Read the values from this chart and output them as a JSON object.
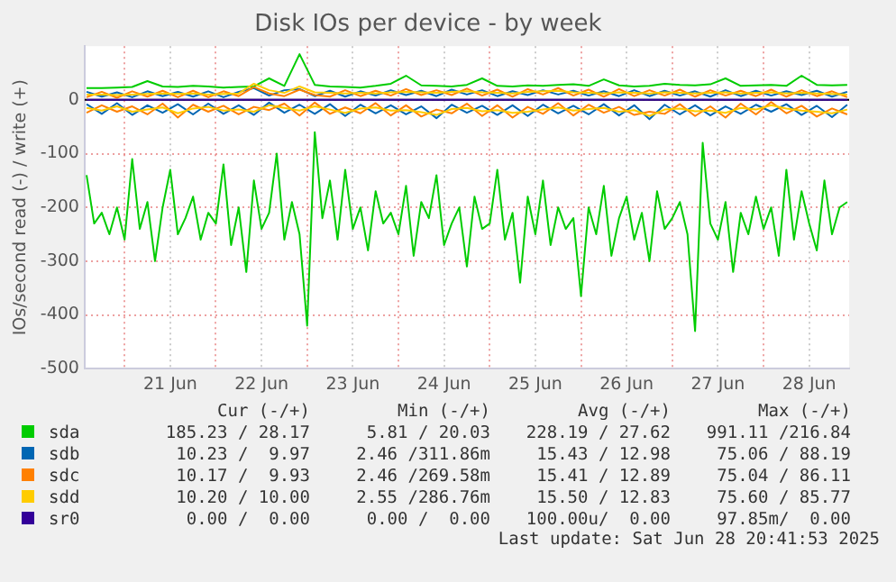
{
  "chart_data": {
    "type": "line",
    "title": "Disk IOs per device - by week",
    "ylabel": "IOs/second read (-) / write (+)",
    "x": [
      "2025-06-20T14:00",
      "2025-06-20T18:00",
      "2025-06-20T22:00",
      "2025-06-21T02:00",
      "2025-06-21T06:00",
      "2025-06-21T10:00",
      "2025-06-21T14:00",
      "2025-06-21T18:00",
      "2025-06-21T22:00",
      "2025-06-22T02:00",
      "2025-06-22T06:00",
      "2025-06-22T10:00",
      "2025-06-22T14:00",
      "2025-06-22T18:00",
      "2025-06-22T22:00",
      "2025-06-23T02:00",
      "2025-06-23T06:00",
      "2025-06-23T10:00",
      "2025-06-23T14:00",
      "2025-06-23T18:00",
      "2025-06-23T22:00",
      "2025-06-24T02:00",
      "2025-06-24T06:00",
      "2025-06-24T10:00",
      "2025-06-24T14:00",
      "2025-06-24T18:00",
      "2025-06-24T22:00",
      "2025-06-25T02:00",
      "2025-06-25T06:00",
      "2025-06-25T10:00",
      "2025-06-25T14:00",
      "2025-06-25T18:00",
      "2025-06-25T22:00",
      "2025-06-26T02:00",
      "2025-06-26T06:00",
      "2025-06-26T10:00",
      "2025-06-26T14:00",
      "2025-06-26T18:00",
      "2025-06-26T22:00",
      "2025-06-27T02:00",
      "2025-06-27T06:00",
      "2025-06-27T10:00",
      "2025-06-27T14:00",
      "2025-06-27T18:00",
      "2025-06-27T22:00",
      "2025-06-28T02:00",
      "2025-06-28T06:00",
      "2025-06-28T10:00",
      "2025-06-28T14:00",
      "2025-06-28T18:00",
      "2025-06-28T22:00"
    ],
    "series": [
      {
        "name": "sda",
        "color": "#00cc00",
        "values": [
          22,
          22,
          23,
          24,
          35,
          25,
          24,
          26,
          25,
          23,
          24,
          25,
          40,
          26,
          85,
          28,
          25,
          24,
          23,
          26,
          30,
          45,
          27,
          26,
          25,
          28,
          40,
          26,
          25,
          27,
          26,
          28,
          29,
          26,
          38,
          27,
          25,
          26,
          30,
          28,
          27,
          29,
          40,
          26,
          27,
          28,
          26,
          45,
          28,
          27,
          28
        ]
      },
      {
        "color": "#00cc00",
        "x": [
          "2025-06-20T14:00",
          "2025-06-20T16:00",
          "2025-06-20T18:00",
          "2025-06-20T20:00",
          "2025-06-20T22:00",
          "2025-06-21T00:00",
          "2025-06-21T02:00",
          "2025-06-21T04:00",
          "2025-06-21T06:00",
          "2025-06-21T08:00",
          "2025-06-21T10:00",
          "2025-06-21T12:00",
          "2025-06-21T14:00",
          "2025-06-21T16:00",
          "2025-06-21T18:00",
          "2025-06-21T20:00",
          "2025-06-21T22:00",
          "2025-06-22T00:00",
          "2025-06-22T02:00",
          "2025-06-22T04:00",
          "2025-06-22T06:00",
          "2025-06-22T08:00",
          "2025-06-22T10:00",
          "2025-06-22T12:00",
          "2025-06-22T14:00",
          "2025-06-22T16:00",
          "2025-06-22T18:00",
          "2025-06-22T20:00",
          "2025-06-22T22:00",
          "2025-06-23T00:00",
          "2025-06-23T02:00",
          "2025-06-23T04:00",
          "2025-06-23T06:00",
          "2025-06-23T08:00",
          "2025-06-23T10:00",
          "2025-06-23T12:00",
          "2025-06-23T14:00",
          "2025-06-23T16:00",
          "2025-06-23T18:00",
          "2025-06-23T20:00",
          "2025-06-23T22:00",
          "2025-06-24T00:00",
          "2025-06-24T02:00",
          "2025-06-24T04:00",
          "2025-06-24T06:00",
          "2025-06-24T08:00",
          "2025-06-24T10:00",
          "2025-06-24T12:00",
          "2025-06-24T14:00",
          "2025-06-24T16:00",
          "2025-06-24T18:00",
          "2025-06-24T20:00",
          "2025-06-24T22:00",
          "2025-06-25T00:00",
          "2025-06-25T02:00",
          "2025-06-25T04:00",
          "2025-06-25T06:00",
          "2025-06-25T08:00",
          "2025-06-25T10:00",
          "2025-06-25T12:00",
          "2025-06-25T14:00",
          "2025-06-25T16:00",
          "2025-06-25T18:00",
          "2025-06-25T20:00",
          "2025-06-25T22:00",
          "2025-06-26T00:00",
          "2025-06-26T02:00",
          "2025-06-26T04:00",
          "2025-06-26T06:00",
          "2025-06-26T08:00",
          "2025-06-26T10:00",
          "2025-06-26T12:00",
          "2025-06-26T14:00",
          "2025-06-26T16:00",
          "2025-06-26T18:00",
          "2025-06-26T20:00",
          "2025-06-26T22:00",
          "2025-06-27T00:00",
          "2025-06-27T02:00",
          "2025-06-27T04:00",
          "2025-06-27T06:00",
          "2025-06-27T08:00",
          "2025-06-27T10:00",
          "2025-06-27T12:00",
          "2025-06-27T14:00",
          "2025-06-27T16:00",
          "2025-06-27T18:00",
          "2025-06-27T20:00",
          "2025-06-27T22:00",
          "2025-06-28T00:00",
          "2025-06-28T02:00",
          "2025-06-28T04:00",
          "2025-06-28T06:00",
          "2025-06-28T08:00",
          "2025-06-28T10:00",
          "2025-06-28T12:00",
          "2025-06-28T14:00",
          "2025-06-28T16:00",
          "2025-06-28T18:00",
          "2025-06-28T20:00",
          "2025-06-28T22:00"
        ],
        "values": [
          -140,
          -230,
          -210,
          -250,
          -200,
          -260,
          -110,
          -240,
          -190,
          -300,
          -200,
          -130,
          -250,
          -220,
          -180,
          -260,
          -210,
          -230,
          -120,
          -270,
          -200,
          -320,
          -150,
          -240,
          -210,
          -100,
          -260,
          -190,
          -250,
          -420,
          -60,
          -220,
          -150,
          -260,
          -130,
          -240,
          -200,
          -280,
          -170,
          -230,
          -210,
          -250,
          -160,
          -290,
          -190,
          -220,
          -140,
          -270,
          -230,
          -200,
          -310,
          -180,
          -240,
          -230,
          -130,
          -260,
          -210,
          -340,
          -180,
          -250,
          -150,
          -270,
          -200,
          -240,
          -220,
          -365,
          -200,
          -250,
          -160,
          -290,
          -220,
          -180,
          -260,
          -210,
          -300,
          -170,
          -240,
          -220,
          -190,
          -250,
          -430,
          -80,
          -230,
          -260,
          -190,
          -320,
          -210,
          -250,
          -180,
          -240,
          -200,
          -290,
          -130,
          -260,
          -170,
          -230,
          -280,
          -150,
          -250,
          -200,
          -190
        ]
      },
      {
        "name": "sdb",
        "color": "#0066b3",
        "values": [
          15,
          6,
          14,
          5,
          16,
          7,
          15,
          6,
          16,
          5,
          15,
          22,
          8,
          18,
          20,
          7,
          17,
          6,
          16,
          8,
          18,
          9,
          17,
          7,
          19,
          10,
          18,
          7,
          16,
          9,
          18,
          10,
          17,
          8,
          16,
          7,
          18,
          7,
          17,
          8,
          16,
          6,
          18,
          7,
          17,
          8,
          16,
          9,
          17,
          6,
          15
        ]
      },
      {
        "color": "#0066b3",
        "values": [
          -8,
          -26,
          -6,
          -28,
          -10,
          -24,
          -8,
          -27,
          -7,
          -26,
          -10,
          -28,
          -5,
          -24,
          -9,
          -26,
          -8,
          -30,
          -9,
          -25,
          -10,
          -27,
          -12,
          -34,
          -9,
          -24,
          -11,
          -28,
          -10,
          -30,
          -9,
          -25,
          -11,
          -27,
          -8,
          -29,
          -10,
          -36,
          -9,
          -27,
          -10,
          -29,
          -12,
          -26,
          -9,
          -22,
          -8,
          -28,
          -11,
          -32,
          -9
        ]
      },
      {
        "name": "sdc",
        "color": "#ff8000",
        "values": [
          5,
          15,
          4,
          16,
          6,
          17,
          5,
          17,
          5,
          16,
          7,
          24,
          12,
          7,
          19,
          9,
          6,
          18,
          7,
          17,
          8,
          20,
          9,
          18,
          9,
          21,
          8,
          19,
          6,
          20,
          10,
          22,
          8,
          19,
          6,
          20,
          7,
          18,
          8,
          19,
          6,
          18,
          8,
          17,
          7,
          19,
          6,
          18,
          7,
          16,
          5
        ]
      },
      {
        "color": "#ff8000",
        "values": [
          -24,
          -10,
          -22,
          -12,
          -27,
          -7,
          -33,
          -9,
          -22,
          -11,
          -27,
          -13,
          -19,
          -7,
          -29,
          -5,
          -26,
          -14,
          -25,
          -6,
          -29,
          -10,
          -31,
          -18,
          -25,
          -7,
          -30,
          -10,
          -33,
          -13,
          -26,
          -6,
          -29,
          -9,
          -24,
          -13,
          -28,
          -22,
          -26,
          -8,
          -30,
          -12,
          -33,
          -7,
          -27,
          -4,
          -25,
          -11,
          -31,
          -16,
          -27
        ]
      },
      {
        "name": "sdd",
        "color": "#ffcc00",
        "values": [
          10,
          10,
          9,
          10,
          11,
          12,
          11,
          12,
          10,
          11,
          12,
          30,
          18,
          13,
          25,
          14,
          13,
          12,
          13,
          12,
          14,
          15,
          14,
          13,
          15,
          16,
          14,
          13,
          12,
          15,
          16,
          17,
          14,
          13,
          12,
          14,
          13,
          12,
          14,
          13,
          12,
          13,
          14,
          12,
          13,
          14,
          12,
          13,
          12,
          11,
          10
        ]
      },
      {
        "color": "#ffcc00",
        "values": [
          -15,
          -20,
          -12,
          -22,
          -18,
          -14,
          -25,
          -16,
          -13,
          -20,
          -18,
          -22,
          -10,
          -15,
          -20,
          -12,
          -18,
          -24,
          -16,
          -14,
          -20,
          -19,
          -23,
          -28,
          -17,
          -15,
          -21,
          -19,
          -24,
          -22,
          -18,
          -14,
          -20,
          -17,
          -15,
          -22,
          -19,
          -30,
          -18,
          -16,
          -21,
          -20,
          -24,
          -15,
          -18,
          -10,
          -16,
          -20,
          -22,
          -25,
          -18
        ]
      },
      {
        "name": "sr0",
        "color": "#330099",
        "x": [
          "2025-06-20T14:00",
          "2025-06-28T22:00"
        ],
        "values": [
          0,
          0
        ]
      }
    ],
    "xlim": [
      "2025-06-20T13:30",
      "2025-06-28T22:30"
    ],
    "xticks": [
      {
        "value": "2025-06-21T00:00",
        "label": null
      },
      {
        "value": "2025-06-21T12:00",
        "label": "21 Jun"
      },
      {
        "value": "2025-06-22T00:00",
        "label": null
      },
      {
        "value": "2025-06-22T12:00",
        "label": "22 Jun"
      },
      {
        "value": "2025-06-23T00:00",
        "label": null
      },
      {
        "value": "2025-06-23T12:00",
        "label": "23 Jun"
      },
      {
        "value": "2025-06-24T00:00",
        "label": null
      },
      {
        "value": "2025-06-24T12:00",
        "label": "24 Jun"
      },
      {
        "value": "2025-06-25T00:00",
        "label": null
      },
      {
        "value": "2025-06-25T12:00",
        "label": "25 Jun"
      },
      {
        "value": "2025-06-26T00:00",
        "label": null
      },
      {
        "value": "2025-06-26T12:00",
        "label": "26 Jun"
      },
      {
        "value": "2025-06-27T00:00",
        "label": null
      },
      {
        "value": "2025-06-27T12:00",
        "label": "27 Jun"
      },
      {
        "value": "2025-06-28T00:00",
        "label": null
      },
      {
        "value": "2025-06-28T12:00",
        "label": "28 Jun"
      }
    ],
    "ylim": [
      -500,
      100
    ],
    "yticks": [
      -500,
      -400,
      -300,
      -200,
      -100,
      0
    ],
    "ref_lines": [
      {
        "axis": "y",
        "value": 0,
        "color": "#000000"
      }
    ],
    "grid": true,
    "legend": "bottom",
    "line_style": "solid",
    "annotations": [
      "Cur (-/+)",
      "Min (-/+)",
      "Avg (-/+)",
      "Max (-/+)",
      "185.23 / 28.17",
      "5.81 / 20.03",
      "228.19 / 27.62",
      "991.11 /216.84",
      "10.23 /  9.97",
      "2.46 /311.86m",
      "15.43 / 12.98",
      "75.06 / 88.19",
      "10.17 /  9.93",
      "2.46 /269.58m",
      "15.41 / 12.89",
      "75.04 / 86.11",
      "10.20 / 10.00",
      "2.55 /286.76m",
      "15.50 / 12.83",
      "75.60 / 85.77",
      "0.00 /  0.00",
      "0.00 /  0.00",
      "100.00u/  0.00",
      "97.85m/  0.00",
      "Last update: Sat Jun 28 20:41:53 2025"
    ]
  }
}
